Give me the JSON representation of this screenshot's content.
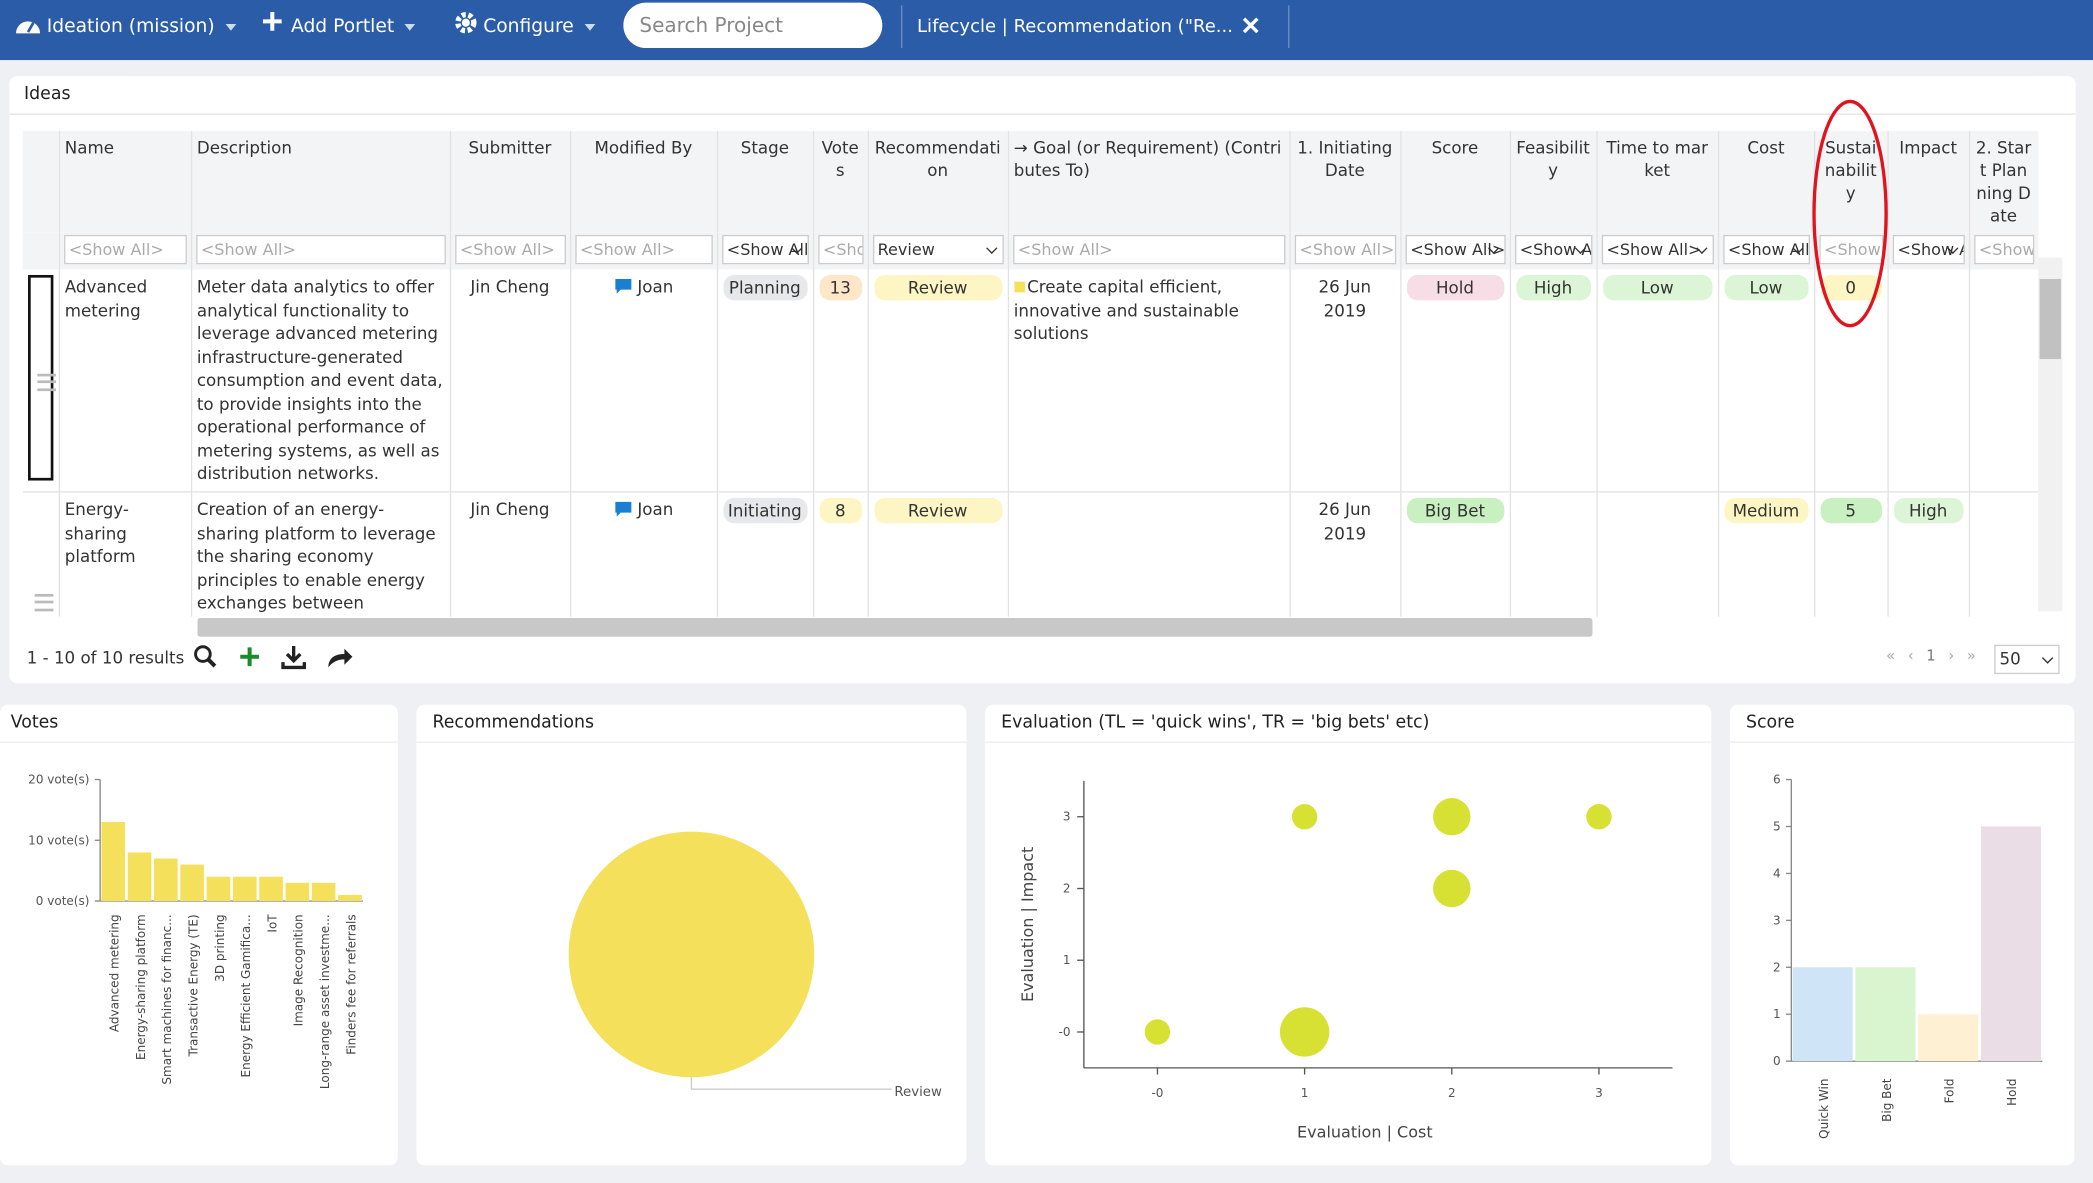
{
  "nav": {
    "workspace": "Ideation (mission)",
    "add_portlet": "Add Portlet",
    "configure": "Configure",
    "search_placeholder": "Search Project",
    "tab": "Lifecycle | Recommendation (\"Re..."
  },
  "ideas": {
    "title": "Ideas",
    "columns": [
      "Name",
      "Description",
      "Submitter",
      "Modified By",
      "Stage",
      "Votes",
      "Recommendation",
      "→ Goal (or Requirement) (Contributes To)",
      "1. Initiating Date",
      "Score",
      "Feasibility",
      "Time to market",
      "Cost",
      "Sustainability",
      "Impact",
      "2. Start Planning Date"
    ],
    "filters": [
      "<Show All>",
      "<Show All>",
      "<Show All>",
      "<Show All>",
      "<Show All>",
      "<Show All>",
      "Review",
      "<Show All>",
      "<Show All>",
      "<Show All>",
      "<Show All>",
      "<Show All>",
      "<Show All>",
      "<Show All>",
      "<Show All>",
      "<Show All>"
    ],
    "rows": [
      [
        "Advanced metering",
        "Meter data analytics to offer analytical functionality to leverage advanced metering infrastructure-generated consumption and event data, to provide insights into the operational performance of metering systems, as well as distribution networks.",
        "Jin Cheng",
        "Joan",
        "Planning",
        "13",
        "Review",
        "Create capital efficient, innovative and sustainable solutions",
        "26 Jun 2019",
        "Hold",
        "High",
        "Low",
        "Low",
        "0",
        null,
        null
      ],
      [
        "Energy-sharing platform",
        "Creation of an energy-sharing platform to leverage the sharing economy principles to enable energy exchanges between individual prosumers with extra production capacity",
        "Jin Cheng",
        "Joan",
        "Initiating",
        "8",
        "Review",
        null,
        "26 Jun 2019",
        "Big Bet",
        null,
        null,
        "Medium",
        "5",
        "High",
        null
      ]
    ],
    "footer": {
      "results": "1 - 10 of 10 results",
      "page": "1",
      "page_size": "50"
    }
  },
  "chart_data": [
    {
      "type": "bar",
      "title": "Votes",
      "categories": [
        "Advanced metering",
        "Energy-sharing platform",
        "Smart machines for financ...",
        "Transactive Energy (TE)",
        "3D printing",
        "Energy Efficient Gamifica...",
        "IoT",
        "Image Recognition",
        "Long-range asset investme...",
        "Finders fee for referrals"
      ],
      "values": [
        13,
        8,
        7,
        6,
        4,
        4,
        4,
        3,
        3,
        1
      ],
      "color": "#f5e05c",
      "ylim": [
        0,
        20
      ],
      "yticks": [
        {
          "value": 0,
          "label": "0 vote(s)"
        },
        {
          "value": 10,
          "label": "10 vote(s)"
        },
        {
          "value": 20,
          "label": "20 vote(s)"
        }
      ]
    },
    {
      "type": "pie",
      "title": "Recommendations",
      "categories": [
        "Review"
      ],
      "values": [
        10
      ],
      "colors": [
        "#f5e05c"
      ]
    },
    {
      "type": "scatter",
      "title": "Evaluation (TL = 'quick wins', TR = 'big bets' etc)",
      "x_label": "Evaluation | Cost",
      "y_label": "Evaluation | Impact",
      "x": [
        0,
        1,
        2,
        3,
        2,
        1
      ],
      "y": [
        0,
        3,
        3,
        3,
        2,
        0
      ],
      "sizes": [
        1,
        1,
        2,
        1,
        2,
        3
      ],
      "color": "#d2de1e",
      "xlim": [
        -0.5,
        3.5
      ],
      "ylim": [
        -0.5,
        3.5
      ],
      "xticks": [
        {
          "value": 0,
          "label": "-0"
        },
        1,
        2,
        3
      ],
      "yticks": [
        {
          "value": 0,
          "label": "-0"
        },
        1,
        2,
        3
      ]
    },
    {
      "type": "bar",
      "title": "Score",
      "categories": [
        "Quick Win",
        "Big Bet",
        "Fold",
        "Hold"
      ],
      "values": [
        2,
        2,
        1,
        5
      ],
      "colors": [
        "#cfe4f7",
        "#d8f5d0",
        "#fdf0d3",
        "#eadde6"
      ],
      "ylim": [
        0,
        6
      ],
      "yticks": [
        0,
        1,
        2,
        3,
        4,
        5,
        6
      ]
    }
  ]
}
